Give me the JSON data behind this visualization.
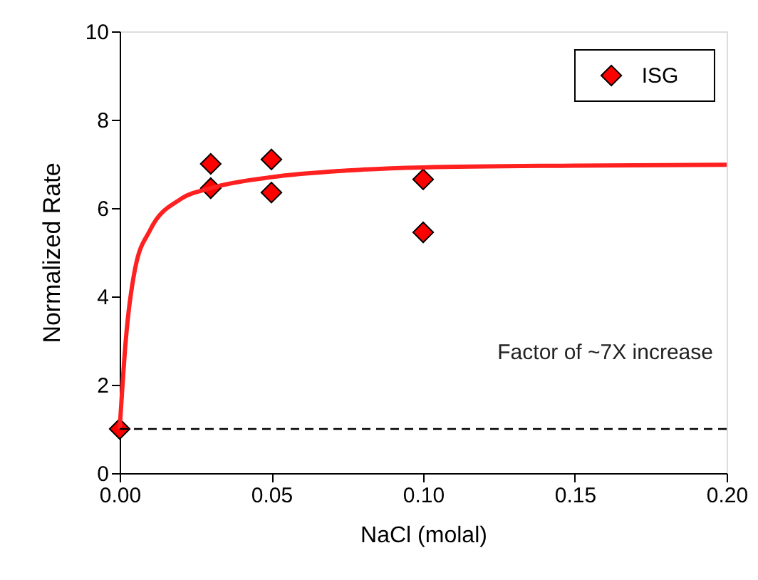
{
  "chart_data": {
    "type": "scatter",
    "xlabel": "NaCl (molal)",
    "ylabel": "Normalized Rate",
    "xlim": [
      0,
      0.2
    ],
    "xticks": [
      {
        "value": 0,
        "label": "0.00"
      },
      {
        "value": 0.05,
        "label": "0.05"
      },
      {
        "value": 0.1,
        "label": "0.10"
      },
      {
        "value": 0.15,
        "label": "0.15"
      },
      {
        "value": 0.2,
        "label": "0.20"
      }
    ],
    "ylim": [
      0,
      10
    ],
    "yticks": [
      0,
      2,
      4,
      6,
      8,
      10
    ],
    "series": [
      {
        "name": "ISG",
        "color": "#ff0000",
        "marker": "diamond",
        "x": [
          0,
          0.03,
          0.03,
          0.05,
          0.05,
          0.1,
          0.1
        ],
        "values": [
          1.0,
          7.0,
          6.45,
          7.1,
          6.35,
          6.65,
          5.45
        ]
      },
      {
        "type": "line",
        "color": "#ff2020",
        "x": [
          0,
          0.002,
          0.005,
          0.01,
          0.02,
          0.03,
          0.05,
          0.075,
          0.1,
          0.15,
          0.2
        ],
        "values": [
          1.0,
          3.0,
          4.6,
          5.5,
          6.2,
          6.45,
          6.7,
          6.85,
          6.92,
          6.96,
          6.98
        ]
      }
    ],
    "ref_lines": [
      {
        "axis": "y",
        "value": 1,
        "color": "#000000",
        "line_style": "dashed"
      }
    ],
    "annotations": [
      "Factor of ~7X increase"
    ],
    "legend": "top right",
    "grid": false
  }
}
